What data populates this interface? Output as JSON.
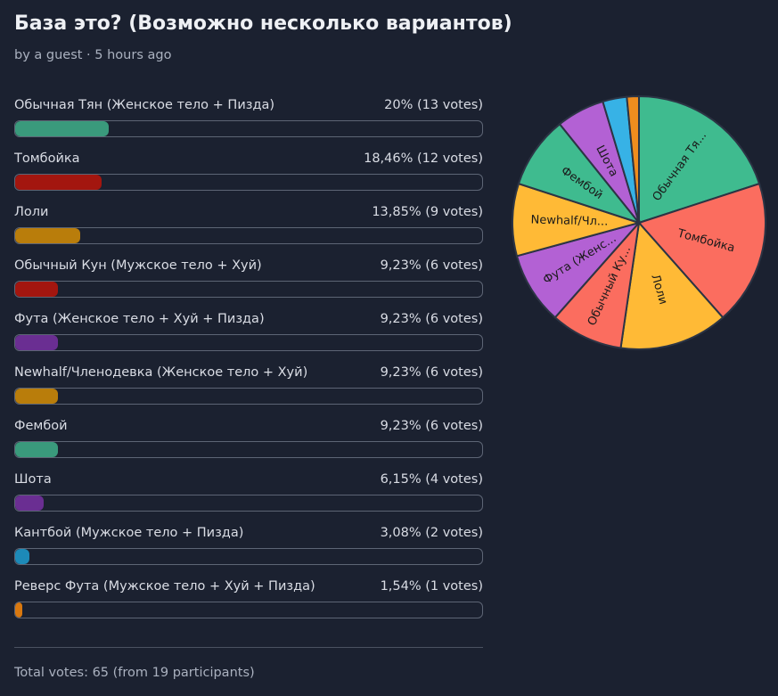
{
  "poll": {
    "title": "База это? (Возможно несколько вариантов)",
    "meta": "by a guest · 5 hours ago",
    "total": "Total votes: 65 (from 19 participants)"
  },
  "options": [
    {
      "label": "Обычная Тян (Женское тело + Пизда)",
      "result": "20% (13 votes)",
      "percent": 20,
      "bar_color": "#3a9a7c"
    },
    {
      "label": "Томбойка",
      "result": "18,46% (12 votes)",
      "percent": 18.46,
      "bar_color": "#a3160f"
    },
    {
      "label": "Лоли",
      "result": "13,85% (9 votes)",
      "percent": 13.85,
      "bar_color": "#b97d0b"
    },
    {
      "label": "Обычный Кун (Мужское тело + Хуй)",
      "result": "9,23% (6 votes)",
      "percent": 9.23,
      "bar_color": "#a3160f"
    },
    {
      "label": "Фута (Женское тело + Хуй + Пизда)",
      "result": "9,23% (6 votes)",
      "percent": 9.23,
      "bar_color": "#6a2e92"
    },
    {
      "label": "Newhalf/Членодевка (Женское тело + Хуй)",
      "result": "9,23% (6 votes)",
      "percent": 9.23,
      "bar_color": "#b97d0b"
    },
    {
      "label": "Фембой",
      "result": "9,23% (6 votes)",
      "percent": 9.23,
      "bar_color": "#3a9a7c"
    },
    {
      "label": "Шота",
      "result": "6,15% (4 votes)",
      "percent": 6.15,
      "bar_color": "#6a2e92"
    },
    {
      "label": "Кантбой (Мужское тело + Пизда)",
      "result": "3,08% (2 votes)",
      "percent": 3.08,
      "bar_color": "#1d8ab8"
    },
    {
      "label": "Реверс Фута (Мужское тело + Хуй + Пизда)",
      "result": "1,54% (1 votes)",
      "percent": 1.54,
      "bar_color": "#d9780f"
    }
  ],
  "pie": {
    "slices": [
      {
        "label": "Обычная Тя...",
        "value": 13,
        "color": "#3fbb8f"
      },
      {
        "label": "Томбойка",
        "value": 12,
        "color": "#fb6d5f"
      },
      {
        "label": "Лоли",
        "value": 9,
        "color": "#ffba36"
      },
      {
        "label": "Обычный Ку...",
        "value": 6,
        "color": "#fb6d5f"
      },
      {
        "label": "Фута (Женс...",
        "value": 6,
        "color": "#b361d4"
      },
      {
        "label": "Newhalf/Чл...",
        "value": 6,
        "color": "#ffba36"
      },
      {
        "label": "Фембой",
        "value": 6,
        "color": "#3fbb8f"
      },
      {
        "label": "Шота",
        "value": 4,
        "color": "#b361d4"
      },
      {
        "label": "",
        "value": 2,
        "color": "#37b2e6"
      },
      {
        "label": "",
        "value": 1,
        "color": "#f08d1e"
      }
    ],
    "stroke": "#2c3444"
  }
}
